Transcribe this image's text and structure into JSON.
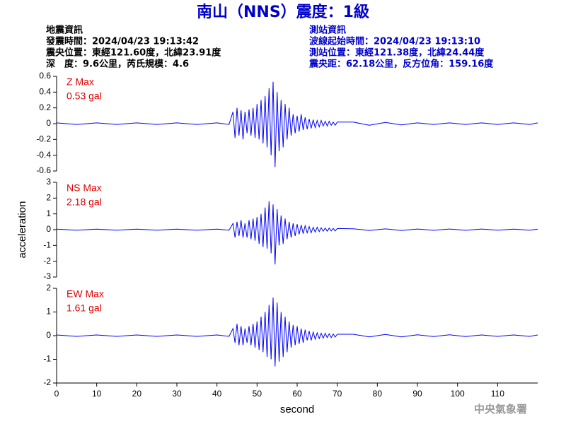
{
  "title": "南山（NNS）震度：1級",
  "left_info": [
    "地震資訊",
    "發震時間：2024/04/23 19:13:42",
    "震央位置：東經121.60度，北緯23.91度",
    "深　度：9.6公里，芮氏規模：4.6"
  ],
  "right_info": [
    "測站資訊",
    "波線起始時間：2024/04/23 19:13:10",
    "測站位置：東經121.38度，北緯24.44度",
    "震央距：62.18公里，反方位角：159.16度"
  ],
  "y_label": "acceleration",
  "watermark": "中央氣象署",
  "chart_data": [
    {
      "type": "line",
      "annotation": [
        "Z Max",
        "0.53 gal"
      ],
      "color": "#0000ff",
      "ylim": [
        -0.6,
        0.6
      ],
      "yticks": [
        -0.6,
        -0.4,
        -0.2,
        0,
        0.2,
        0.4,
        0.6
      ],
      "xlim": [
        0,
        120
      ],
      "x": [
        0,
        5,
        10,
        15,
        20,
        25,
        30,
        35,
        40,
        43,
        44,
        44.5,
        45,
        45.5,
        46,
        46.5,
        47,
        47.5,
        48,
        48.5,
        49,
        49.5,
        50,
        50.5,
        51,
        51.5,
        52,
        52.5,
        53,
        53.5,
        54,
        54.5,
        55,
        55.5,
        56,
        56.5,
        57,
        57.5,
        58,
        58.5,
        59,
        59.5,
        60,
        60.5,
        61,
        61.5,
        62,
        62.5,
        63,
        63.5,
        64,
        64.5,
        65,
        65.5,
        66,
        66.5,
        67,
        67.5,
        68,
        68.5,
        69,
        69.5,
        70,
        74,
        78,
        82,
        86,
        90,
        94,
        98,
        102,
        106,
        110,
        114,
        118,
        120
      ],
      "values": [
        0.01,
        -0.01,
        0.01,
        -0.01,
        0.01,
        -0.01,
        0.01,
        -0.01,
        0.01,
        -0.01,
        0.15,
        -0.18,
        0.2,
        -0.15,
        0.17,
        -0.2,
        0.15,
        -0.12,
        0.18,
        -0.15,
        0.2,
        -0.18,
        0.25,
        -0.2,
        0.3,
        -0.25,
        0.35,
        -0.3,
        0.45,
        -0.4,
        0.53,
        -0.55,
        0.4,
        -0.35,
        0.3,
        -0.3,
        0.25,
        -0.2,
        0.2,
        -0.15,
        0.12,
        -0.12,
        0.1,
        -0.1,
        0.12,
        -0.08,
        0.08,
        -0.07,
        0.06,
        -0.06,
        0.05,
        -0.05,
        0.04,
        -0.04,
        0.04,
        -0.03,
        0.03,
        -0.03,
        0.03,
        -0.02,
        0.02,
        -0.02,
        0.02,
        0.02,
        -0.02,
        0.015,
        -0.015,
        0.01,
        -0.01,
        0.01,
        -0.01,
        0.01,
        -0.01,
        0.01,
        -0.01,
        0.01
      ]
    },
    {
      "type": "line",
      "annotation": [
        "NS Max",
        "2.18 gal"
      ],
      "color": "#0000ff",
      "ylim": [
        -3,
        3
      ],
      "yticks": [
        -3,
        -2,
        -1,
        0,
        1,
        2,
        3
      ],
      "xlim": [
        0,
        120
      ],
      "x": [
        0,
        5,
        10,
        15,
        20,
        25,
        30,
        35,
        40,
        43,
        44,
        44.5,
        45,
        45.5,
        46,
        46.5,
        47,
        47.5,
        48,
        48.5,
        49,
        49.5,
        50,
        50.5,
        51,
        51.5,
        52,
        52.5,
        53,
        53.5,
        54,
        54.5,
        55,
        55.5,
        56,
        56.5,
        57,
        57.5,
        58,
        58.5,
        59,
        59.5,
        60,
        60.5,
        61,
        61.5,
        62,
        62.5,
        63,
        63.5,
        64,
        64.5,
        65,
        65.5,
        66,
        66.5,
        67,
        67.5,
        68,
        68.5,
        69,
        69.5,
        70,
        74,
        78,
        82,
        86,
        90,
        94,
        98,
        102,
        106,
        110,
        114,
        118,
        120
      ],
      "values": [
        0.03,
        -0.03,
        0.03,
        -0.03,
        0.03,
        -0.03,
        0.03,
        -0.03,
        0.03,
        -0.03,
        0.4,
        -0.5,
        0.5,
        -0.4,
        0.6,
        -0.5,
        0.4,
        -0.5,
        0.6,
        -0.6,
        0.7,
        -0.7,
        0.8,
        -0.9,
        1.0,
        -1.1,
        1.4,
        -1.2,
        1.8,
        -1.5,
        1.6,
        -2.2,
        1.3,
        -1.0,
        0.9,
        -0.9,
        0.7,
        -0.6,
        0.5,
        -0.5,
        0.4,
        -0.4,
        0.35,
        -0.3,
        0.3,
        -0.25,
        0.25,
        -0.2,
        0.2,
        -0.2,
        0.15,
        -0.15,
        0.15,
        -0.12,
        0.12,
        -0.1,
        0.1,
        -0.1,
        0.1,
        -0.08,
        0.08,
        -0.08,
        0.07,
        0.06,
        -0.05,
        0.05,
        -0.05,
        0.04,
        -0.04,
        0.04,
        -0.04,
        0.04,
        -0.03,
        0.03,
        -0.03,
        0.03
      ]
    },
    {
      "type": "line",
      "annotation": [
        "EW Max",
        "1.61 gal"
      ],
      "color": "#0000ff",
      "ylim": [
        -2,
        2
      ],
      "yticks": [
        -2,
        -1,
        0,
        1,
        2
      ],
      "xlim": [
        0,
        120
      ],
      "xticks": [
        0,
        10,
        20,
        30,
        40,
        50,
        60,
        70,
        80,
        90,
        100,
        110
      ],
      "x_label": "second",
      "x": [
        0,
        5,
        10,
        15,
        20,
        25,
        30,
        35,
        40,
        43,
        44,
        44.5,
        45,
        45.5,
        46,
        46.5,
        47,
        47.5,
        48,
        48.5,
        49,
        49.5,
        50,
        50.5,
        51,
        51.5,
        52,
        52.5,
        53,
        53.5,
        54,
        54.5,
        55,
        55.5,
        56,
        56.5,
        57,
        57.5,
        58,
        58.5,
        59,
        59.5,
        60,
        60.5,
        61,
        61.5,
        62,
        62.5,
        63,
        63.5,
        64,
        64.5,
        65,
        65.5,
        66,
        66.5,
        67,
        67.5,
        68,
        68.5,
        69,
        69.5,
        70,
        74,
        78,
        82,
        86,
        90,
        94,
        98,
        102,
        106,
        110,
        114,
        118,
        120
      ],
      "values": [
        0.03,
        -0.03,
        0.03,
        -0.03,
        0.03,
        -0.03,
        0.03,
        -0.03,
        0.03,
        -0.03,
        0.3,
        -0.3,
        0.5,
        -0.4,
        0.4,
        -0.4,
        0.3,
        -0.3,
        0.4,
        -0.4,
        0.5,
        -0.5,
        0.6,
        -0.6,
        0.8,
        -0.7,
        1.0,
        -0.9,
        1.3,
        -1.0,
        1.61,
        -1.3,
        1.4,
        -1.1,
        1.0,
        -0.9,
        0.8,
        -0.7,
        0.6,
        -0.5,
        0.45,
        -0.4,
        0.4,
        -0.35,
        0.3,
        -0.3,
        0.25,
        -0.2,
        0.2,
        -0.2,
        0.15,
        -0.15,
        0.12,
        -0.12,
        0.1,
        -0.1,
        0.1,
        -0.08,
        0.08,
        -0.08,
        0.07,
        -0.06,
        0.06,
        0.06,
        -0.05,
        0.05,
        -0.05,
        0.04,
        -0.04,
        0.04,
        -0.04,
        0.03,
        -0.03,
        0.03,
        -0.03,
        0.03
      ]
    }
  ]
}
